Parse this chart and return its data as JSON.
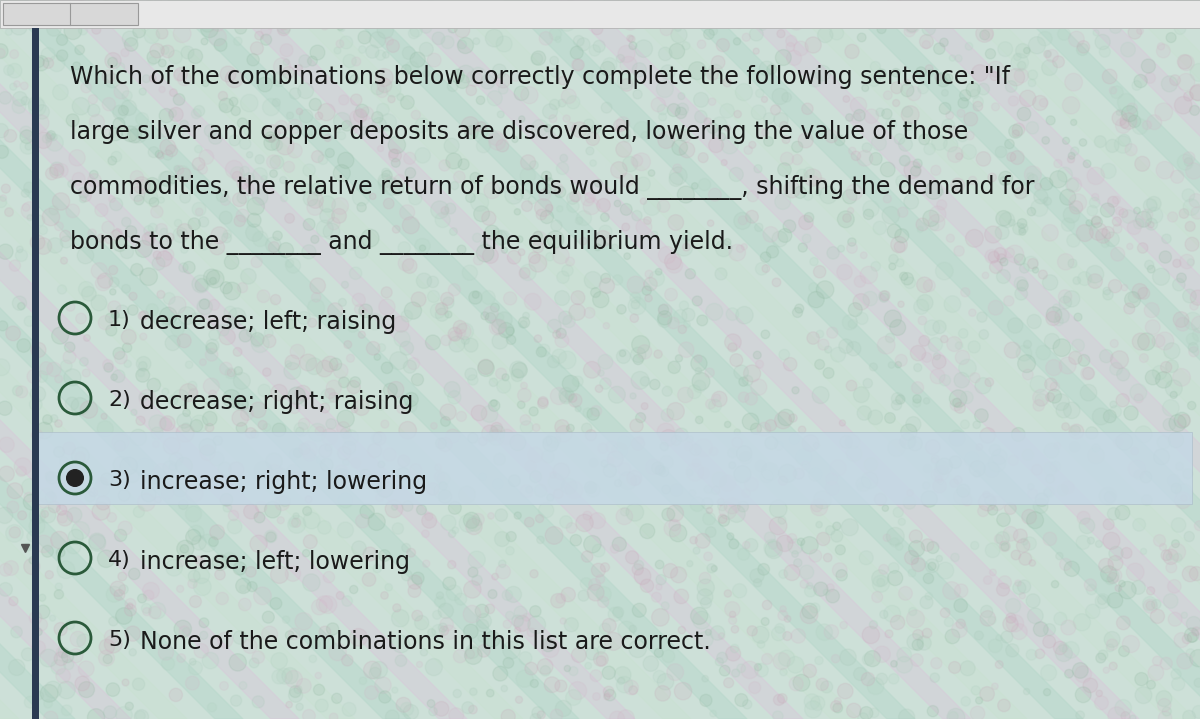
{
  "question_text_lines": [
    "Which of the combinations below correctly complete the following sentence: \"If",
    "large silver and copper deposits are discovered, lowering the value of those",
    "commodities, the relative return of bonds would ________, shifting the demand for",
    "bonds to the ________ and ________ the equilibrium yield."
  ],
  "options": [
    {
      "num": "1)",
      "text": "decrease; left; raising",
      "selected": false,
      "filled": false
    },
    {
      "num": "2)",
      "text": "decrease; right; raising",
      "selected": false,
      "filled": false
    },
    {
      "num": "3)",
      "text": "increase; right; lowering",
      "selected": true,
      "filled": true
    },
    {
      "num": "4)",
      "text": "increase; left; lowering",
      "selected": false,
      "filled": false
    },
    {
      "num": "5)",
      "text": "None of the combinations in this list are correct.",
      "selected": false,
      "filled": false
    }
  ],
  "bg_base_color": [
    0.78,
    0.88,
    0.86
  ],
  "highlight_color": "#c5d8e5",
  "left_bar_color": "#2a3a52",
  "text_color": "#1a1a1a",
  "circle_color": "#2a5a3a",
  "font_size_question": 17,
  "font_size_options": 17
}
